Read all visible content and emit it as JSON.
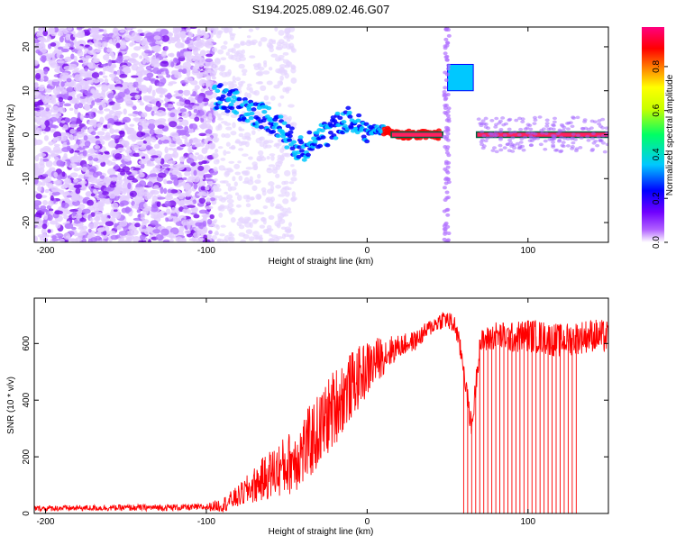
{
  "title": "S194.2025.089.02.46.G07",
  "chart_data": [
    {
      "type": "heatmap",
      "xlabel": "Height of straight line (km)",
      "ylabel": "Frequency (Hz)",
      "xlim": [
        -207,
        150
      ],
      "ylim": [
        -24.5,
        24.5
      ],
      "xticks": [
        -200,
        -100,
        0,
        100
      ],
      "yticks": [
        -20,
        -10,
        0,
        10,
        20
      ],
      "colorbar": {
        "label": "Normalized spectral amplitude",
        "range": [
          0,
          0.98
        ],
        "ticks": [
          "0.0",
          "0.2",
          "0.4",
          "0.6",
          "0.8"
        ],
        "colors": [
          "#ffffff",
          "#a000ff",
          "#0000ff",
          "#00c8ff",
          "#00ff64",
          "#ffff00",
          "#ff8000",
          "#ff0000",
          "#ff0080"
        ]
      },
      "ridge": {
        "x": [
          -95,
          -85,
          -78,
          -70,
          -62,
          -55,
          -48,
          -40,
          -33,
          -25,
          -18,
          -12,
          -8,
          0,
          10,
          20,
          30,
          45
        ],
        "frequency": [
          9,
          8,
          6,
          5,
          4,
          2,
          -1,
          -4,
          0,
          0,
          2,
          4,
          2,
          1,
          1,
          0,
          0,
          0
        ]
      },
      "ridge2": {
        "x": [
          68,
          80,
          90,
          100,
          110,
          120,
          130,
          140,
          150
        ],
        "frequency": [
          0,
          0,
          0,
          0,
          0,
          0,
          0,
          0,
          0
        ]
      },
      "feature": {
        "x": [
          50,
          66
        ],
        "frequency": 13
      }
    },
    {
      "type": "line",
      "xlabel": "Height of straight line (km)",
      "ylabel": "SNR (10 * v/v)",
      "xlim": [
        -207,
        150
      ],
      "ylim": [
        0,
        760
      ],
      "xticks": [
        -200,
        -100,
        0,
        100
      ],
      "yticks": [
        0,
        200,
        400,
        600
      ],
      "color": "#ff0000",
      "trend": {
        "x": [
          -207,
          -100,
          -90,
          -80,
          -70,
          -60,
          -50,
          -40,
          -30,
          -20,
          -10,
          0,
          10,
          20,
          30,
          40,
          48,
          55,
          60,
          62,
          65,
          70,
          80,
          90,
          100,
          110,
          120,
          130,
          140,
          150
        ],
        "y": [
          18,
          22,
          30,
          60,
          100,
          140,
          170,
          220,
          290,
          380,
          450,
          510,
          560,
          590,
          610,
          660,
          690,
          660,
          520,
          420,
          300,
          600,
          630,
          620,
          630,
          620,
          610,
          620,
          630,
          620
        ]
      },
      "noise_amplitude": {
        "x": [
          -207,
          -100,
          -80,
          -60,
          -40,
          -20,
          0,
          20,
          40,
          60,
          100,
          150
        ],
        "y": [
          10,
          12,
          40,
          90,
          130,
          140,
          100,
          40,
          30,
          40,
          60,
          60
        ]
      },
      "dropout_spikes": {
        "x_range": [
          60,
          130
        ],
        "spacing_km": 2.5,
        "y_min": 0
      }
    }
  ]
}
